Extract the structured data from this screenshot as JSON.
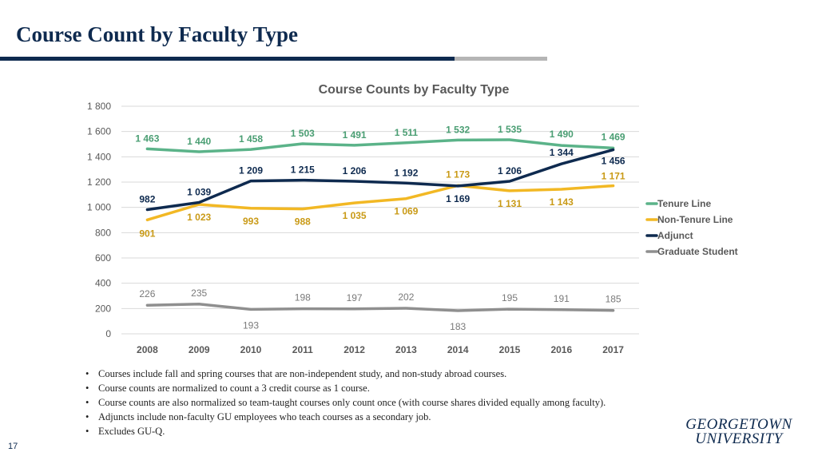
{
  "slide": {
    "title": "Course Count by Faculty Type",
    "page_number": "17",
    "logo_line1": "GEORGETOWN",
    "logo_line2": "UNIVERSITY",
    "bullets": [
      "Courses include fall and spring courses that are non-independent study, and non-study abroad courses.",
      "Course counts are normalized to count a 3 credit course as 1 course.",
      "Course counts are also normalized so team-taught courses only count once (with course shares divided equally among faculty).",
      "Adjuncts include non-faculty GU employees who teach courses as a secondary job.",
      "Excludes GU-Q."
    ]
  },
  "colors": {
    "title": "#0e2a4f",
    "tenure": "#5bb389",
    "nontenure": "#f2b824",
    "adjunct": "#0e2a4f",
    "graduate": "#8f8f8f",
    "tenure_label": "#4a9e73",
    "nontenure_label": "#c99a16",
    "graduate_label": "#7a7a7a"
  },
  "chart_data": {
    "type": "line",
    "title": "Course Counts by Faculty Type",
    "xlabel": "",
    "ylabel": "",
    "categories": [
      "2008",
      "2009",
      "2010",
      "2011",
      "2012",
      "2013",
      "2014",
      "2015",
      "2016",
      "2017"
    ],
    "ylim": [
      0,
      1800
    ],
    "yticks": [
      0,
      200,
      400,
      600,
      800,
      1000,
      1200,
      1400,
      1600,
      1800
    ],
    "ytick_labels": [
      "0",
      "200",
      "400",
      "600",
      "800",
      "1 000",
      "1 200",
      "1 400",
      "1 600",
      "1 800"
    ],
    "grid": true,
    "legend_position": "right",
    "series": [
      {
        "name": "Tenure Line",
        "key": "tenure",
        "values": [
          1463,
          1440,
          1458,
          1503,
          1491,
          1511,
          1532,
          1535,
          1490,
          1469
        ],
        "labels": [
          "1 463",
          "1 440",
          "1 458",
          "1 503",
          "1 491",
          "1 511",
          "1 532",
          "1 535",
          "1 490",
          "1 469"
        ]
      },
      {
        "name": "Non-Tenure Line",
        "key": "nontenure",
        "values": [
          901,
          1023,
          993,
          988,
          1035,
          1069,
          1173,
          1131,
          1143,
          1171
        ],
        "labels": [
          "901",
          "1 023",
          "993",
          "988",
          "1 035",
          "1 069",
          "1 173",
          "1 131",
          "1 143",
          "1 171"
        ]
      },
      {
        "name": "Adjunct",
        "key": "adjunct",
        "values": [
          982,
          1039,
          1209,
          1215,
          1206,
          1192,
          1169,
          1206,
          1344,
          1456
        ],
        "labels": [
          "982",
          "1 039",
          "1 209",
          "1 215",
          "1 206",
          "1 192",
          "1 169",
          "1 206",
          "1 344",
          "1 456"
        ]
      },
      {
        "name": "Graduate Student",
        "key": "graduate",
        "values": [
          226,
          235,
          193,
          198,
          197,
          202,
          183,
          195,
          191,
          185
        ],
        "labels": [
          "226",
          "235",
          "193",
          "198",
          "197",
          "202",
          "183",
          "195",
          "191",
          "185"
        ]
      }
    ]
  }
}
